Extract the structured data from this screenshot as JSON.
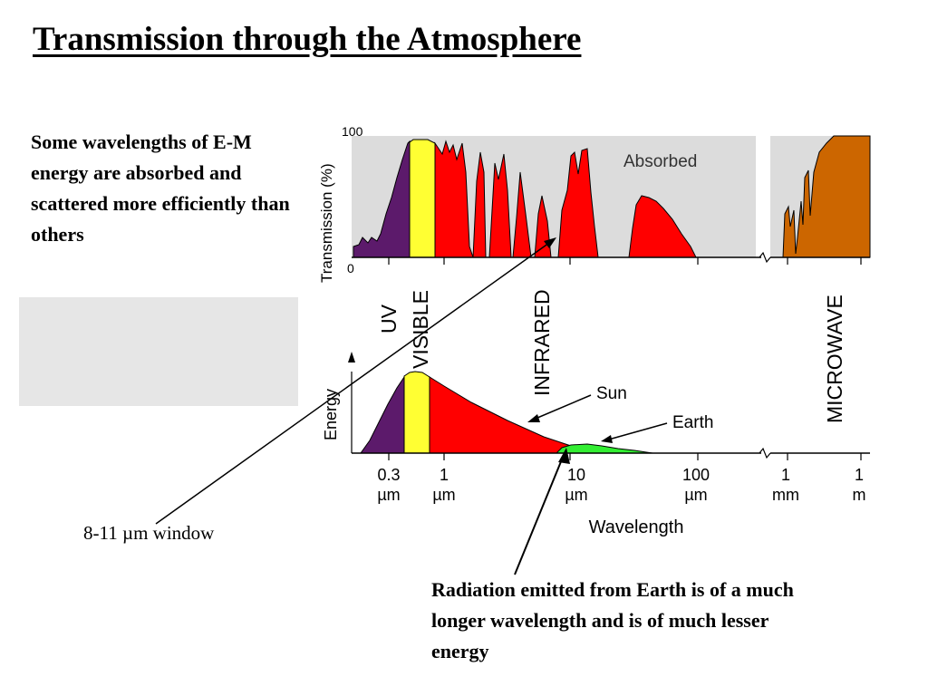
{
  "slide": {
    "title": "Transmission through the Atmosphere",
    "intro_text": "Some wavelengths of E-M energy are absorbed and scattered more efficiently than others",
    "window_annotation": "8-11 µm window",
    "earth_annotation": "Radiation emitted from Earth is of a much longer wavelength and is of much lesser energy"
  },
  "transmission_chart": {
    "ylabel": "Transmission (%)",
    "y_max_label": "100",
    "y_min_label": "0",
    "absorbed_label": "Absorbed"
  },
  "bands": {
    "uv": "UV",
    "visible": "VISIBLE",
    "infrared": "INFRARED",
    "microwave": "MICROWAVE"
  },
  "energy_chart": {
    "ylabel": "Energy",
    "sun_label": "Sun",
    "earth_label": "Earth",
    "xlabel": "Wavelength",
    "ticks": [
      {
        "value": "0.3",
        "unit": "µm"
      },
      {
        "value": "1",
        "unit": "µm"
      },
      {
        "value": "10",
        "unit": "µm"
      },
      {
        "value": "100",
        "unit": "µm"
      },
      {
        "value": "1",
        "unit": "mm"
      },
      {
        "value": "1",
        "unit": "m"
      }
    ]
  },
  "colors": {
    "uv": "#5c1a6b",
    "visible": "#ffff33",
    "infrared": "#ff0000",
    "microwave": "#cc6600",
    "earth": "#33ee33",
    "absorbed_bg": "#dcdcdc"
  }
}
